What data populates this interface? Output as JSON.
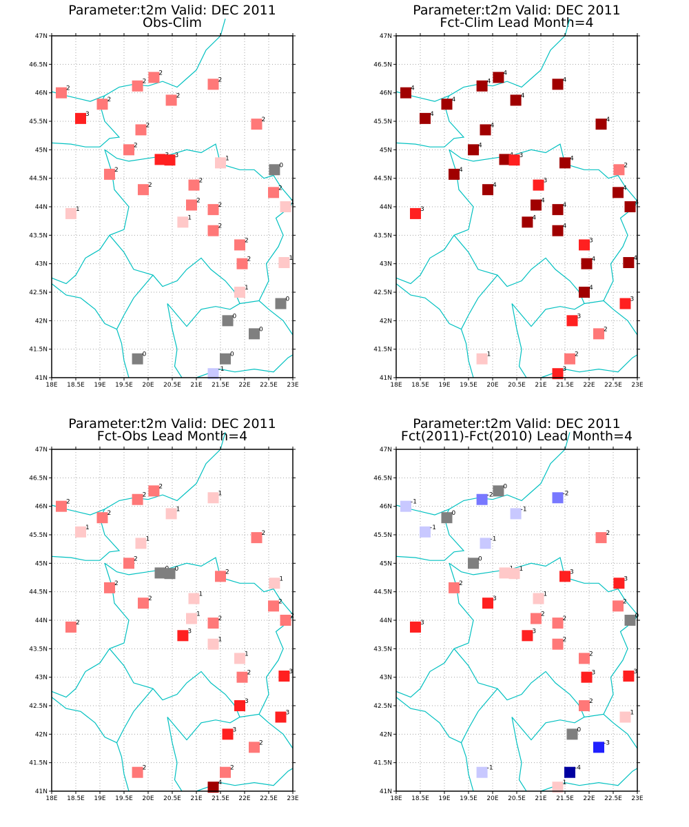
{
  "colors": {
    "border": "#00c0c0",
    "grid": "#a0a0a0",
    "frame": "#000000",
    "zero": "#7f7f7f",
    "pos1": "#ffc8c8",
    "pos2": "#ff7878",
    "pos3": "#ff2020",
    "pos4": "#a00000",
    "neg1": "#c8c8ff",
    "neg2": "#7878ff",
    "neg3": "#2020ff",
    "neg4": "#0000a0"
  },
  "axes": {
    "x_ticks": [
      "18E",
      "18.5E",
      "19E",
      "19.5E",
      "20E",
      "20.5E",
      "21E",
      "21.5E",
      "22E",
      "22.5E",
      "23E"
    ],
    "x_values": [
      18,
      18.5,
      19,
      19.5,
      20,
      20.5,
      21,
      21.5,
      22,
      22.5,
      23
    ],
    "y_ticks": [
      "41N",
      "41.5N",
      "42N",
      "42.5N",
      "43N",
      "43.5N",
      "44N",
      "44.5N",
      "45N",
      "45.5N",
      "46N",
      "46.5N",
      "47N"
    ],
    "y_values": [
      41,
      41.5,
      42,
      42.5,
      43,
      43.5,
      44,
      44.5,
      45,
      45.5,
      46,
      46.5,
      47
    ],
    "lon_range": [
      18,
      23
    ],
    "lat_range": [
      41,
      47
    ]
  },
  "stations": [
    [
      18.2,
      46.0
    ],
    [
      18.6,
      45.55
    ],
    [
      19.05,
      45.8
    ],
    [
      19.78,
      46.12
    ],
    [
      20.12,
      46.27
    ],
    [
      20.48,
      45.87
    ],
    [
      21.35,
      46.15
    ],
    [
      19.85,
      45.35
    ],
    [
      19.6,
      45.0
    ],
    [
      20.25,
      44.83
    ],
    [
      20.45,
      44.82
    ],
    [
      21.5,
      44.77
    ],
    [
      22.25,
      45.45
    ],
    [
      22.62,
      44.65
    ],
    [
      19.2,
      44.57
    ],
    [
      19.9,
      44.3
    ],
    [
      20.95,
      44.38
    ],
    [
      22.6,
      44.25
    ],
    [
      22.85,
      44.0
    ],
    [
      18.4,
      43.88
    ],
    [
      20.9,
      44.03
    ],
    [
      21.35,
      43.95
    ],
    [
      20.72,
      43.73
    ],
    [
      21.35,
      43.58
    ],
    [
      21.9,
      43.33
    ],
    [
      21.95,
      43.0
    ],
    [
      22.82,
      43.02
    ],
    [
      21.9,
      42.5
    ],
    [
      22.75,
      42.3
    ],
    [
      21.65,
      42.0
    ],
    [
      22.2,
      41.77
    ],
    [
      19.78,
      41.33
    ],
    [
      21.6,
      41.33
    ],
    [
      21.35,
      41.07
    ]
  ],
  "panels": [
    {
      "title_line1": "Parameter:t2m Valid: DEC 2011",
      "title_line2": "Obs-Clim",
      "values": [
        2,
        3,
        2,
        2,
        2,
        2,
        2,
        2,
        2,
        3,
        3,
        1,
        2,
        0,
        2,
        2,
        2,
        2,
        1,
        1,
        2,
        2,
        1,
        2,
        2,
        2,
        1,
        1,
        0,
        0,
        0,
        0,
        0,
        -1
      ]
    },
    {
      "title_line1": "Parameter:t2m Valid: DEC 2011",
      "title_line2": "Fct-Clim Lead Month=4",
      "values": [
        4,
        4,
        4,
        4,
        4,
        4,
        4,
        4,
        4,
        4,
        3,
        4,
        4,
        2,
        4,
        4,
        3,
        4,
        4,
        3,
        4,
        4,
        4,
        4,
        3,
        4,
        4,
        4,
        3,
        3,
        2,
        1,
        2,
        3
      ]
    },
    {
      "title_line1": "Parameter:t2m Valid: DEC 2011",
      "title_line2": "Fct-Obs Lead Month=4",
      "values": [
        2,
        1,
        2,
        2,
        2,
        1,
        1,
        1,
        2,
        0,
        0,
        2,
        2,
        1,
        2,
        2,
        1,
        2,
        2,
        2,
        1,
        2,
        3,
        1,
        1,
        2,
        3,
        3,
        3,
        3,
        2,
        2,
        2,
        4
      ]
    },
    {
      "title_line1": "Parameter:t2m Valid: DEC 2011",
      "title_line2": "Fct(2011)-Fct(2010) Lead Month=4",
      "values": [
        -1,
        -1,
        0,
        -2,
        0,
        -1,
        -2,
        -1,
        0,
        1,
        1,
        3,
        2,
        3,
        2,
        3,
        1,
        2,
        0,
        3,
        2,
        2,
        3,
        2,
        2,
        3,
        3,
        2,
        1,
        0,
        -3,
        -1,
        -4,
        1
      ]
    }
  ]
}
